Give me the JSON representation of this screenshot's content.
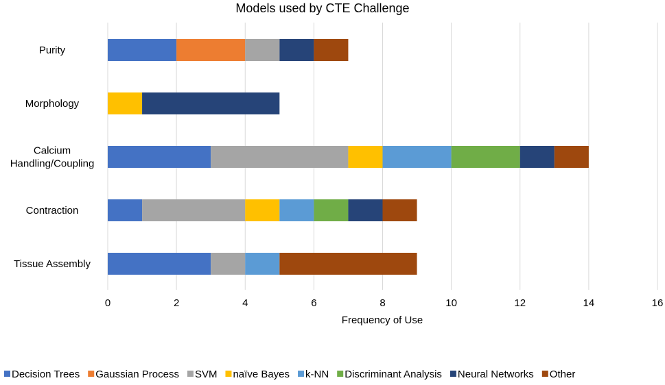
{
  "chart_data": {
    "type": "bar",
    "orientation": "horizontal",
    "stacked": true,
    "title": "Models used by CTE Challenge",
    "xlabel": "Frequency of Use",
    "ylabel": "",
    "xlim": [
      0,
      16
    ],
    "xticks": [
      "0",
      "2",
      "4",
      "6",
      "8",
      "10",
      "12",
      "14",
      "16"
    ],
    "grid": true,
    "legend_position": "bottom",
    "categories": [
      [
        "Purity"
      ],
      [
        "Morphology"
      ],
      [
        "Calcium",
        "Handling/Coupling"
      ],
      [
        "Contraction"
      ],
      [
        "Tissue Assembly"
      ]
    ],
    "series": [
      {
        "name": "Decision Trees",
        "color": "#4472c4",
        "values": [
          2,
          0,
          3,
          1,
          3
        ]
      },
      {
        "name": "Gaussian Process",
        "color": "#ed7d31",
        "values": [
          2,
          0,
          0,
          0,
          0
        ]
      },
      {
        "name": "SVM",
        "color": "#a5a5a5",
        "values": [
          1,
          0,
          4,
          3,
          1
        ]
      },
      {
        "name": "naïve Bayes",
        "color": "#ffc000",
        "values": [
          0,
          1,
          1,
          1,
          0
        ]
      },
      {
        "name": "k-NN",
        "color": "#5b9bd5",
        "values": [
          0,
          0,
          2,
          1,
          1
        ]
      },
      {
        "name": "Discriminant Analysis",
        "color": "#70ad47",
        "values": [
          0,
          0,
          2,
          1,
          0
        ]
      },
      {
        "name": "Neural Networks",
        "color": "#264478",
        "values": [
          1,
          4,
          1,
          1,
          0
        ]
      },
      {
        "name": "Other",
        "color": "#9e480e",
        "values": [
          1,
          0,
          1,
          1,
          4
        ]
      }
    ]
  }
}
